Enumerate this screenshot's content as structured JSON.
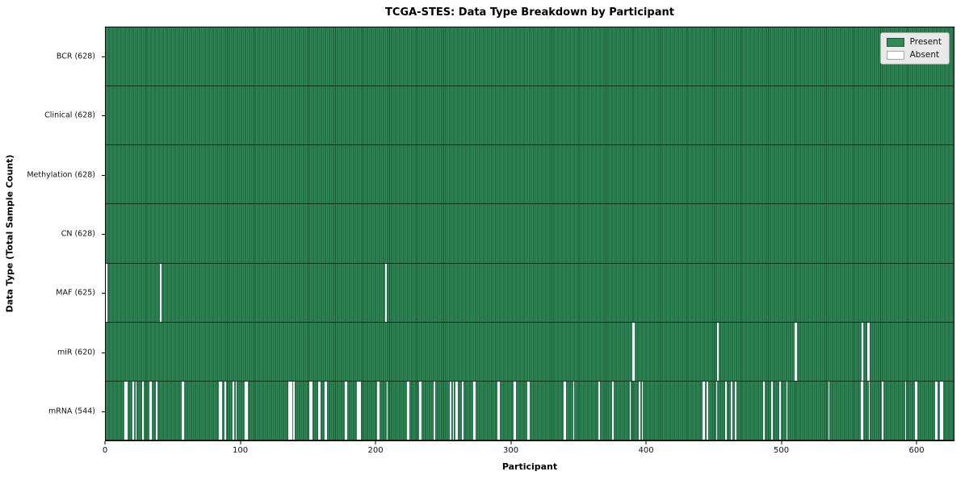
{
  "colors": {
    "present": "#2e8b57",
    "present_edge": "#1b5334",
    "absent": "#ffffff",
    "legend_background": "#e9e9e9",
    "legend_border": "#a6a6a6",
    "row_separator": "#0c2d1b",
    "text": "#111111"
  },
  "chart_data": {
    "type": "heatmap",
    "title": "TCGA-STES: Data Type Breakdown by Participant",
    "x_label": "Participant",
    "y_label": "Data Type (Total Sample Count)",
    "x_ticks": [
      0,
      100,
      200,
      300,
      400,
      500,
      600
    ],
    "x_range": [
      0,
      628
    ],
    "n_participants": 628,
    "legend_position": "upper right",
    "grid": false,
    "legend": [
      {
        "label": "Present",
        "color": "#2e8b57"
      },
      {
        "label": "Absent",
        "color": "#ffffff"
      }
    ],
    "rows": [
      {
        "name": "BCR",
        "label": "BCR (628)",
        "count": 628,
        "absent": []
      },
      {
        "name": "Clinical",
        "label": "Clinical (628)",
        "count": 628,
        "absent": []
      },
      {
        "name": "Methylation",
        "label": "Methylation (628)",
        "count": 628,
        "absent": []
      },
      {
        "name": "CN",
        "label": "CN (628)",
        "count": 628,
        "absent": []
      },
      {
        "name": "MAF",
        "label": "MAF (625)",
        "count": 625,
        "absent": [
          0,
          40,
          207
        ]
      },
      {
        "name": "miR",
        "label": "miR (620)",
        "count": 620,
        "absent": [
          390,
          391,
          453,
          510,
          511,
          560,
          564,
          565
        ]
      },
      {
        "name": "mRNA",
        "label": "mRNA (544)",
        "count": 544,
        "absent": [
          14,
          15,
          20,
          22,
          27,
          32,
          33,
          37,
          56,
          57,
          84,
          85,
          88,
          94,
          96,
          103,
          104,
          135,
          136,
          137,
          139,
          151,
          152,
          157,
          158,
          162,
          163,
          177,
          178,
          186,
          187,
          188,
          201,
          202,
          208,
          223,
          224,
          232,
          233,
          243,
          255,
          257,
          259,
          260,
          264,
          272,
          273,
          290,
          291,
          302,
          303,
          312,
          313,
          339,
          340,
          346,
          365,
          375,
          388,
          395,
          397,
          442,
          443,
          445,
          452,
          459,
          463,
          466,
          487,
          493,
          499,
          504,
          535,
          559,
          560,
          565,
          575,
          592,
          599,
          600,
          614,
          615,
          618,
          619
        ]
      }
    ]
  }
}
